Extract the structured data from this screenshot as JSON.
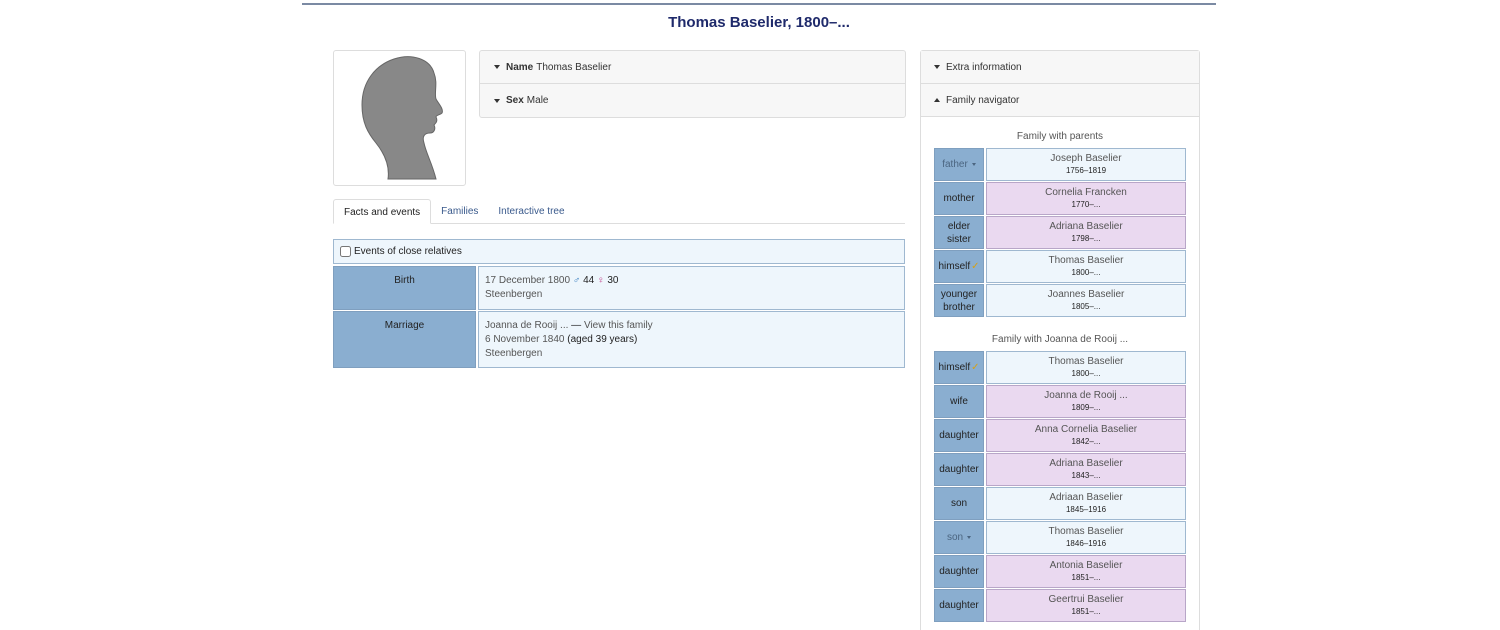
{
  "page": {
    "title": "Thomas Baselier, 1800–..."
  },
  "summary": {
    "name_label": "Name",
    "name_value": "Thomas Baselier",
    "sex_label": "Sex",
    "sex_value": "Male"
  },
  "tabs": [
    {
      "label": "Facts and events",
      "active": true
    },
    {
      "label": "Families",
      "active": false
    },
    {
      "label": "Interactive tree",
      "active": false
    }
  ],
  "facts": {
    "close_relatives_label": "Events of close relatives",
    "rows": [
      {
        "label": "Birth",
        "date": "17 December 1800",
        "father_age": "44",
        "mother_age": "30",
        "place": "Steenbergen"
      },
      {
        "label": "Marriage",
        "spouse": "Joanna de Rooij ...",
        "separator": " — ",
        "family_link": "View this family",
        "date": "6 November 1840",
        "age": "(aged 39 years)",
        "place": "Steenbergen"
      }
    ]
  },
  "sidebar": {
    "extra_info_label": "Extra information",
    "family_nav_label": "Family navigator",
    "parents_caption": "Family with parents",
    "parents": [
      {
        "role": "father",
        "name": "Joseph Baselier",
        "dates": "1756–1819",
        "sex": "male",
        "muted": true
      },
      {
        "role": "mother",
        "name": "Cornelia Francken",
        "dates": "1770–...",
        "sex": "female",
        "muted": false
      },
      {
        "role": "elder sister",
        "name": "Adriana Baselier",
        "dates": "1798–...",
        "sex": "female",
        "muted": false
      },
      {
        "role": "himself",
        "name": "Thomas Baselier",
        "dates": "1800–...",
        "sex": "male",
        "muted": false,
        "self": true
      },
      {
        "role": "younger brother",
        "name": "Joannes Baselier",
        "dates": "1805–...",
        "sex": "male",
        "muted": false
      }
    ],
    "spouse_caption": "Family with Joanna de Rooij ...",
    "spouse_family": [
      {
        "role": "himself",
        "name": "Thomas Baselier",
        "dates": "1800–...",
        "sex": "male",
        "muted": false,
        "self": true
      },
      {
        "role": "wife",
        "name": "Joanna de Rooij ...",
        "dates": "1809–...",
        "sex": "female",
        "muted": false
      },
      {
        "role": "daughter",
        "name": "Anna Cornelia Baselier",
        "dates": "1842–...",
        "sex": "female",
        "muted": false
      },
      {
        "role": "daughter",
        "name": "Adriana Baselier",
        "dates": "1843–...",
        "sex": "female",
        "muted": false
      },
      {
        "role": "son",
        "name": "Adriaan Baselier",
        "dates": "1845–1916",
        "sex": "male",
        "muted": false
      },
      {
        "role": "son",
        "name": "Thomas Baselier",
        "dates": "1846–1916",
        "sex": "male",
        "muted": true
      },
      {
        "role": "daughter",
        "name": "Antonia Baselier",
        "dates": "1851–...",
        "sex": "female",
        "muted": false
      },
      {
        "role": "daughter",
        "name": "Geertrui Baselier",
        "dates": "1851–...",
        "sex": "female",
        "muted": false
      }
    ]
  },
  "icons": {
    "male": "♂",
    "female": "♀",
    "check": "✓"
  }
}
